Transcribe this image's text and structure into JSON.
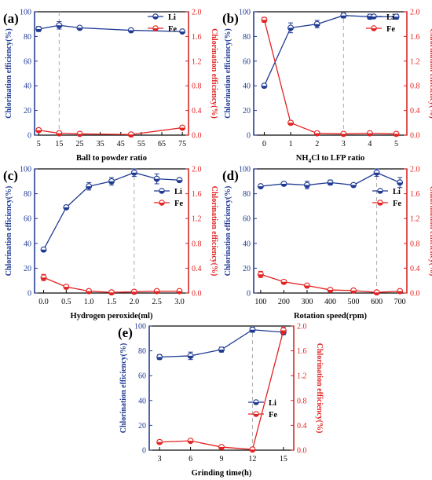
{
  "colors": {
    "li": "#1f3a93",
    "fe": "#e32222",
    "axis": "#000000",
    "marker_line": "#aaaaaa"
  },
  "chart_data": [
    {
      "id": "a",
      "panel_label": "(a)",
      "type": "line",
      "xlabel": "Ball to powder ratio",
      "ylabel_left": "Chlorination efficiency(%)",
      "ylabel_right": "Chlorination efficiency(%)",
      "x_ticks": [
        5,
        15,
        25,
        35,
        45,
        55,
        65,
        75
      ],
      "xlim": [
        3,
        78
      ],
      "ylim_left": [
        0,
        100
      ],
      "ylim_right": [
        0,
        2.0
      ],
      "y_ticks_left": [
        "0",
        "20",
        "40",
        "60",
        "80",
        "100"
      ],
      "y_ticks_right": [
        "0.0",
        "0.4",
        "0.8",
        "1.2",
        "1.6",
        "2.0"
      ],
      "legend_position": "top-right",
      "dashed_x": 15,
      "series": [
        {
          "name": "Li",
          "axis": "left",
          "x": [
            5,
            15,
            25,
            50,
            75
          ],
          "values": [
            86,
            89,
            87,
            85,
            84
          ],
          "errors": [
            2,
            3,
            1,
            1,
            1
          ]
        },
        {
          "name": "Fe",
          "axis": "right",
          "x": [
            5,
            15,
            25,
            50,
            75
          ],
          "values": [
            0.08,
            0.03,
            0.02,
            0.01,
            0.12
          ],
          "errors": [
            0.02,
            0.01,
            0.01,
            0.01,
            0.03
          ]
        }
      ]
    },
    {
      "id": "b",
      "panel_label": "(b)",
      "type": "line",
      "xlabel": "NH4Cl to LFP ratio",
      "ylabel_left": "Chlorination efficiency(%)",
      "ylabel_right": "Chlorination efficiency(%)",
      "x_ticks": [
        0,
        1,
        2,
        3,
        4,
        5
      ],
      "xlim": [
        -0.4,
        5.4
      ],
      "ylim_left": [
        0,
        100
      ],
      "ylim_right": [
        0,
        2.0
      ],
      "y_ticks_left": [
        "0",
        "20",
        "40",
        "60",
        "80",
        "100"
      ],
      "y_ticks_right": [
        "0.0",
        "0.4",
        "0.8",
        "1.2",
        "1.6",
        "2.0"
      ],
      "legend_position": "top-right",
      "dashed_x": 3,
      "series": [
        {
          "name": "Li",
          "axis": "left",
          "x": [
            0,
            1,
            2,
            3,
            4,
            5
          ],
          "values": [
            40,
            87,
            90,
            97,
            96,
            96
          ],
          "errors": [
            0,
            4,
            3,
            2,
            2,
            2
          ]
        },
        {
          "name": "Fe",
          "axis": "right",
          "x": [
            0,
            1,
            2,
            3,
            4,
            5
          ],
          "values": [
            1.87,
            0.2,
            0.03,
            0.02,
            0.03,
            0.02
          ],
          "errors": [
            0.04,
            0.03,
            0.01,
            0.01,
            0.01,
            0.01
          ]
        }
      ]
    },
    {
      "id": "c",
      "panel_label": "(c)",
      "type": "line",
      "xlabel": "Hydrogen peroxide(ml)",
      "ylabel_left": "Chlorination efficiency(%)",
      "ylabel_right": "Chlorination efficiency(%)",
      "x_ticks": [
        "0.0",
        "0.5",
        "1.0",
        "1.5",
        "2.0",
        "2.5",
        "3.0"
      ],
      "xlim": [
        -0.2,
        3.2
      ],
      "ylim_left": [
        0,
        100
      ],
      "ylim_right": [
        0,
        2.0
      ],
      "y_ticks_left": [
        "0",
        "20",
        "40",
        "60",
        "80",
        "100"
      ],
      "y_ticks_right": [
        "0.0",
        "0.4",
        "0.8",
        "1.2",
        "1.6",
        "2.0"
      ],
      "legend_position": "right",
      "dashed_x": 2.0,
      "series": [
        {
          "name": "Li",
          "axis": "left",
          "x": [
            0,
            0.5,
            1.0,
            1.5,
            2.0,
            2.5,
            3.0
          ],
          "values": [
            35,
            69,
            86,
            90,
            97,
            92,
            91
          ],
          "errors": [
            0,
            0,
            3,
            3,
            3,
            4,
            1
          ]
        },
        {
          "name": "Fe",
          "axis": "right",
          "x": [
            0,
            0.5,
            1.0,
            1.5,
            2.0,
            2.5,
            3.0
          ],
          "values": [
            0.25,
            0.1,
            0.03,
            0.01,
            0.02,
            0.03,
            0.03
          ],
          "errors": [
            0.05,
            0.02,
            0.01,
            0.01,
            0.01,
            0.01,
            0.01
          ]
        }
      ]
    },
    {
      "id": "d",
      "panel_label": "(d)",
      "type": "line",
      "xlabel": "Rotation speed(rpm)",
      "ylabel_left": "Chlorination efficiency(%)",
      "ylabel_right": "Chlorination efficiency(%)",
      "x_ticks": [
        100,
        200,
        300,
        400,
        500,
        600,
        700
      ],
      "xlim": [
        70,
        730
      ],
      "ylim_left": [
        0,
        100
      ],
      "ylim_right": [
        0,
        2.0
      ],
      "y_ticks_left": [
        "0",
        "20",
        "40",
        "60",
        "80",
        "100"
      ],
      "y_ticks_right": [
        "0.0",
        "0.4",
        "0.8",
        "1.2",
        "1.6",
        "2.0"
      ],
      "legend_position": "right",
      "dashed_x": 600,
      "series": [
        {
          "name": "Li",
          "axis": "left",
          "x": [
            100,
            200,
            300,
            400,
            500,
            600,
            700
          ],
          "values": [
            86,
            88,
            87,
            89,
            87,
            97,
            89
          ],
          "errors": [
            1,
            1,
            3,
            2,
            1,
            3,
            4
          ]
        },
        {
          "name": "Fe",
          "axis": "right",
          "x": [
            100,
            200,
            300,
            400,
            500,
            600,
            700
          ],
          "values": [
            0.3,
            0.18,
            0.12,
            0.05,
            0.04,
            0.01,
            0.03
          ],
          "errors": [
            0.05,
            0.03,
            0.02,
            0.01,
            0.01,
            0.01,
            0.02
          ]
        }
      ]
    },
    {
      "id": "e",
      "panel_label": "(e)",
      "type": "line",
      "xlabel": "Grinding time(h)",
      "ylabel_left": "Chlorination efficiency(%)",
      "ylabel_right": "Chlorination efficiency(%)",
      "x_ticks": [
        3,
        6,
        9,
        12,
        15
      ],
      "xlim": [
        2,
        16
      ],
      "ylim_left": [
        0,
        100
      ],
      "ylim_right": [
        0,
        2.0
      ],
      "y_ticks_left": [
        "0",
        "20",
        "40",
        "60",
        "80",
        "100"
      ],
      "y_ticks_right": [
        "0.0",
        "0.4",
        "0.8",
        "1.2",
        "1.6",
        "2.0"
      ],
      "legend_position": "center-right",
      "dashed_x": 12,
      "series": [
        {
          "name": "Li",
          "axis": "left",
          "x": [
            3,
            6,
            9,
            12,
            15
          ],
          "values": [
            75,
            76,
            81,
            97,
            95
          ],
          "errors": [
            2,
            3,
            2,
            2,
            2
          ]
        },
        {
          "name": "Fe",
          "axis": "right",
          "x": [
            3,
            6,
            9,
            12,
            15
          ],
          "values": [
            0.13,
            0.15,
            0.05,
            0.01,
            1.93
          ],
          "errors": [
            0.02,
            0.02,
            0.01,
            0.01,
            0.05
          ]
        }
      ]
    }
  ]
}
